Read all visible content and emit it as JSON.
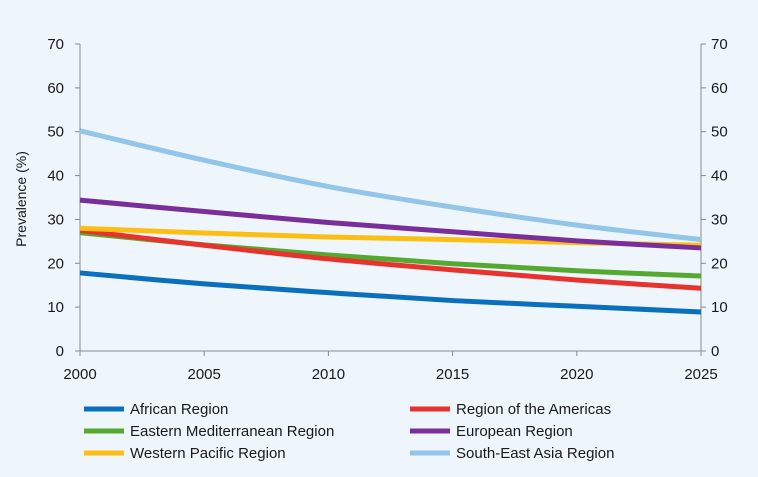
{
  "chart_data": {
    "type": "line",
    "title": "",
    "xlabel": "",
    "ylabel": "Prevalence (%)",
    "xlim": [
      2000,
      2025
    ],
    "ylim": [
      0,
      70
    ],
    "x_ticks": [
      2000,
      2005,
      2010,
      2015,
      2020,
      2025
    ],
    "y_ticks": [
      0,
      10,
      20,
      30,
      40,
      50,
      60,
      70
    ],
    "grid": false,
    "legend_position": "bottom",
    "x": [
      2000,
      2005,
      2010,
      2015,
      2020,
      2025
    ],
    "series": [
      {
        "name": "African Region",
        "color": "#0a6fbd",
        "values": [
          17.8,
          15.3,
          13.3,
          11.5,
          10.2,
          8.9
        ]
      },
      {
        "name": "Region of the Americas",
        "color": "#e8322e",
        "values": [
          27.5,
          24.1,
          21.0,
          18.5,
          16.2,
          14.3
        ]
      },
      {
        "name": "Eastern Mediterranean Region",
        "color": "#55a930",
        "values": [
          27.0,
          24.2,
          21.9,
          19.9,
          18.3,
          17.1
        ]
      },
      {
        "name": "European Region",
        "color": "#7a2e9c",
        "values": [
          34.4,
          31.8,
          29.3,
          27.2,
          25.1,
          23.5
        ]
      },
      {
        "name": "Western Pacific Region",
        "color": "#fbbf14",
        "values": [
          28.0,
          26.9,
          26.0,
          25.4,
          24.7,
          24.1
        ]
      },
      {
        "name": "South-East Asia Region",
        "color": "#92c5e8",
        "values": [
          50.2,
          43.5,
          37.5,
          32.8,
          28.7,
          25.4
        ]
      }
    ]
  }
}
